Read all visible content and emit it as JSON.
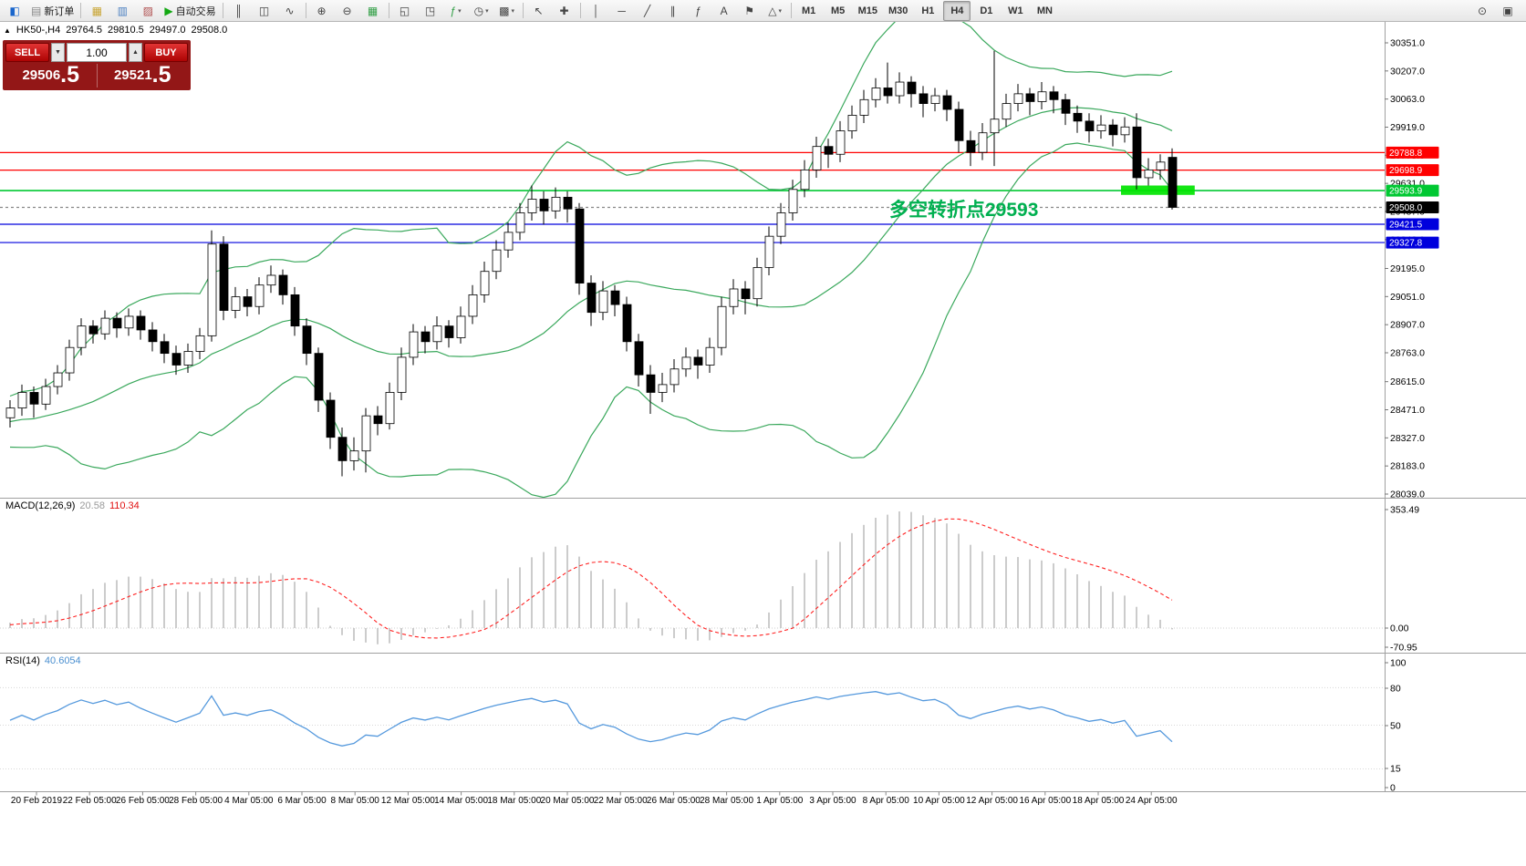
{
  "colors": {
    "bull": "#ffffff",
    "bear": "#000000",
    "wick": "#000000",
    "band": "#3aa85c",
    "resistance": "#ff0000",
    "support": "#0000dd",
    "pivot": "#00c832",
    "current_line": "#888888",
    "current_badge": "#000000",
    "highlight": "#00e400",
    "annotation": "#00b050",
    "macd_hist": "#bfbfbf",
    "macd_signal": "#ff2020",
    "rsi": "#5599dd",
    "separator": "#a0a0a0",
    "axis_text": "#000000"
  },
  "toolbar": {
    "caret_glyph": "▾",
    "items": [
      {
        "name": "app-icon",
        "glyph": "◧",
        "glyphColor": "#1a66cc",
        "static": true
      },
      {
        "name": "new-order-button",
        "glyph": "▤",
        "glyphColor": "#888888",
        "label": "新订单"
      },
      {
        "sep": true
      },
      {
        "name": "market-watch-button",
        "glyph": "▦",
        "glyphColor": "#c8a432"
      },
      {
        "name": "data-window-button",
        "glyph": "▥",
        "glyphColor": "#4a7fc0"
      },
      {
        "name": "terminal-button",
        "glyph": "▨",
        "glyphColor": "#b05050"
      },
      {
        "name": "autotrading-button",
        "glyph": "▶",
        "glyphColor": "#12a812",
        "label": "自动交易"
      },
      {
        "sep": true
      },
      {
        "name": "bar-chart-button",
        "glyph": "║"
      },
      {
        "name": "candlestick-chart-button",
        "glyph": "◫"
      },
      {
        "name": "line-chart-button",
        "glyph": "∿"
      },
      {
        "sep": true
      },
      {
        "name": "zoom-in-button",
        "glyph": "⊕"
      },
      {
        "name": "zoom-out-button",
        "glyph": "⊖"
      },
      {
        "name": "grid-button",
        "glyph": "▦",
        "glyphColor": "#2f9e44"
      },
      {
        "sep": true
      },
      {
        "name": "tile-windows-button",
        "glyph": "◱"
      },
      {
        "name": "cascade-windows-button",
        "glyph": "◳"
      },
      {
        "name": "indicators-dropdown",
        "glyph": "ƒ",
        "glyphColor": "#2f9e44",
        "caret": true
      },
      {
        "name": "periods-dropdown",
        "glyph": "◷",
        "caret": true
      },
      {
        "name": "templates-dropdown",
        "glyph": "▩",
        "caret": true
      },
      {
        "sep": true
      },
      {
        "name": "cursor-button",
        "glyph": "↖"
      },
      {
        "name": "crosshair-button",
        "glyph": "✚"
      },
      {
        "sep": true
      },
      {
        "name": "vertical-line-button",
        "glyph": "│"
      },
      {
        "name": "horizontal-line-button",
        "glyph": "─"
      },
      {
        "name": "trendline-button",
        "glyph": "╱"
      },
      {
        "name": "channel-button",
        "glyph": "∥"
      },
      {
        "name": "fibonacci-button",
        "glyph": "ƒ"
      },
      {
        "name": "text-button",
        "glyph": "A"
      },
      {
        "name": "label-button",
        "glyph": "⚑"
      },
      {
        "name": "shapes-dropdown",
        "glyph": "△",
        "caret": true
      },
      {
        "sep": true
      },
      {
        "name": "timeframe-m1-button",
        "text": "M1"
      },
      {
        "name": "timeframe-m5-button",
        "text": "M5"
      },
      {
        "name": "timeframe-m15-button",
        "text": "M15"
      },
      {
        "name": "timeframe-m30-button",
        "text": "M30"
      },
      {
        "name": "timeframe-h1-button",
        "text": "H1"
      },
      {
        "name": "timeframe-h4-button",
        "text": "H4",
        "active": true
      },
      {
        "name": "timeframe-d1-button",
        "text": "D1"
      },
      {
        "name": "timeframe-w1-button",
        "text": "W1"
      },
      {
        "name": "timeframe-mn-button",
        "text": "MN"
      }
    ],
    "right_items": [
      {
        "name": "symbol-search-button",
        "glyph": "⊙"
      },
      {
        "name": "chart-window-button",
        "glyph": "▣"
      }
    ]
  },
  "symbol_info": {
    "collapse_glyph": "▲",
    "symbol_period": "HK50-,H4",
    "open": "29764.5",
    "high": "29810.5",
    "low": "29497.0",
    "close": "29508.0"
  },
  "trade_panel": {
    "sell_label": "SELL",
    "buy_label": "BUY",
    "volume": "1.00",
    "spinner_down_glyph": "▼",
    "spinner_up_glyph": "▲",
    "sell_price_main": "29506",
    "sell_price_frac": ".5",
    "buy_price_main": "29521",
    "buy_price_frac": ".5"
  },
  "annotation": {
    "text": "多空转折点29593"
  },
  "indicators": {
    "macd": {
      "name": "MACD(12,26,9)",
      "main_value": "20.58",
      "signal_value": "110.34"
    },
    "rsi": {
      "name": "RSI(14)",
      "value": "40.6054"
    }
  },
  "chart_data": {
    "type": "candlestick",
    "symbol": "HK50-",
    "timeframe": "H4",
    "last_ohlc": {
      "open": "29764.5",
      "high": "29810.5",
      "low": "29497.0",
      "close": "29508.0"
    },
    "y_axis_labels": [
      "30351.0",
      "30207.0",
      "30063.0",
      "29919.0",
      "29775.0",
      "29631.0",
      "29487.0",
      "29343.0",
      "29195.0",
      "29051.0",
      "28907.0",
      "28763.0",
      "28615.0",
      "28471.0",
      "28327.0",
      "28183.0",
      "28039.0"
    ],
    "x_axis_labels": [
      "20 Feb 2019",
      "22 Feb 05:00",
      "26 Feb 05:00",
      "28 Feb 05:00",
      "4 Mar 05:00",
      "6 Mar 05:00",
      "8 Mar 05:00",
      "12 Mar 05:00",
      "14 Mar 05:00",
      "18 Mar 05:00",
      "20 Mar 05:00",
      "22 Mar 05:00",
      "26 Mar 05:00",
      "28 Mar 05:00",
      "1 Apr 05:00",
      "3 Apr 05:00",
      "8 Apr 05:00",
      "10 Apr 05:00",
      "12 Apr 05:00",
      "16 Apr 05:00",
      "18 Apr 05:00",
      "24 Apr 05:00"
    ],
    "macd_axis_labels": [
      "353.49",
      "0.00",
      "-70.95"
    ],
    "rsi_axis_labels": [
      "100",
      "80",
      "50",
      "15",
      "0"
    ],
    "horizontal_lines": [
      {
        "price": 29788.8,
        "label": "29788.8",
        "role": "resistance"
      },
      {
        "price": 29698.9,
        "label": "29698.9",
        "role": "resistance"
      },
      {
        "price": 29593.9,
        "label": "29593.9",
        "role": "pivot"
      },
      {
        "price": 29508.0,
        "label": "29508.0",
        "role": "current-price",
        "dashed": true
      },
      {
        "price": 29421.5,
        "label": "29421.5",
        "role": "support"
      },
      {
        "price": 29327.8,
        "label": "29327.8",
        "role": "support"
      }
    ],
    "highlight": {
      "from_bar": 94,
      "to_bar": 99.6,
      "price_top": 29620,
      "price_bottom": 29572
    },
    "bollinger": {
      "period": 20,
      "deviation": 2
    },
    "warmup_closes": [
      28400,
      28350,
      28420,
      28300,
      28380,
      28450,
      28500,
      28420,
      28350,
      28280,
      28340,
      28400,
      28460,
      28520,
      28480,
      28400,
      28350,
      28420,
      28480,
      28430
    ],
    "candles": [
      [
        28430,
        28520,
        28380,
        28480
      ],
      [
        28480,
        28600,
        28440,
        28560
      ],
      [
        28560,
        28590,
        28430,
        28500
      ],
      [
        28500,
        28630,
        28470,
        28590
      ],
      [
        28590,
        28700,
        28550,
        28660
      ],
      [
        28660,
        28830,
        28620,
        28790
      ],
      [
        28790,
        28940,
        28750,
        28900
      ],
      [
        28900,
        28930,
        28810,
        28860
      ],
      [
        28860,
        28980,
        28830,
        28940
      ],
      [
        28940,
        28970,
        28840,
        28890
      ],
      [
        28890,
        28990,
        28850,
        28950
      ],
      [
        28950,
        28980,
        28830,
        28880
      ],
      [
        28880,
        28920,
        28770,
        28820
      ],
      [
        28820,
        28860,
        28710,
        28760
      ],
      [
        28760,
        28800,
        28650,
        28700
      ],
      [
        28700,
        28810,
        28660,
        28770
      ],
      [
        28770,
        28890,
        28730,
        28850
      ],
      [
        28850,
        29390,
        28820,
        29320
      ],
      [
        29320,
        29360,
        28930,
        28980
      ],
      [
        28980,
        29100,
        28940,
        29050
      ],
      [
        29050,
        29090,
        28950,
        29000
      ],
      [
        29000,
        29150,
        28960,
        29110
      ],
      [
        29110,
        29210,
        29070,
        29160
      ],
      [
        29160,
        29190,
        29010,
        29060
      ],
      [
        29060,
        29100,
        28850,
        28900
      ],
      [
        28900,
        28940,
        28700,
        28760
      ],
      [
        28760,
        28790,
        28460,
        28520
      ],
      [
        28520,
        28560,
        28270,
        28330
      ],
      [
        28330,
        28380,
        28130,
        28210
      ],
      [
        28210,
        28330,
        28160,
        28260
      ],
      [
        28260,
        28480,
        28150,
        28440
      ],
      [
        28440,
        28490,
        28340,
        28400
      ],
      [
        28400,
        28610,
        28370,
        28560
      ],
      [
        28560,
        28790,
        28520,
        28740
      ],
      [
        28740,
        28910,
        28700,
        28870
      ],
      [
        28870,
        28900,
        28760,
        28820
      ],
      [
        28820,
        28950,
        28780,
        28900
      ],
      [
        28900,
        28930,
        28790,
        28840
      ],
      [
        28840,
        29000,
        28810,
        28950
      ],
      [
        28950,
        29110,
        28910,
        29060
      ],
      [
        29060,
        29230,
        29020,
        29180
      ],
      [
        29180,
        29340,
        29140,
        29290
      ],
      [
        29290,
        29430,
        29250,
        29380
      ],
      [
        29380,
        29530,
        29340,
        29480
      ],
      [
        29480,
        29620,
        29440,
        29550
      ],
      [
        29550,
        29590,
        29420,
        29490
      ],
      [
        29490,
        29610,
        29450,
        29560
      ],
      [
        29560,
        29590,
        29430,
        29500
      ],
      [
        29500,
        29530,
        29060,
        29120
      ],
      [
        29120,
        29160,
        28900,
        28970
      ],
      [
        28970,
        29130,
        28930,
        29080
      ],
      [
        29080,
        29110,
        28950,
        29010
      ],
      [
        29010,
        29050,
        28770,
        28820
      ],
      [
        28820,
        28860,
        28590,
        28650
      ],
      [
        28650,
        28700,
        28450,
        28560
      ],
      [
        28560,
        28660,
        28510,
        28600
      ],
      [
        28600,
        28730,
        28560,
        28680
      ],
      [
        28680,
        28790,
        28640,
        28740
      ],
      [
        28740,
        28780,
        28630,
        28700
      ],
      [
        28700,
        28840,
        28660,
        28790
      ],
      [
        28790,
        29050,
        28750,
        29000
      ],
      [
        29000,
        29140,
        28960,
        29090
      ],
      [
        29090,
        29130,
        28960,
        29040
      ],
      [
        29040,
        29250,
        29000,
        29200
      ],
      [
        29200,
        29410,
        29160,
        29360
      ],
      [
        29360,
        29530,
        29320,
        29480
      ],
      [
        29480,
        29650,
        29440,
        29600
      ],
      [
        29600,
        29750,
        29560,
        29700
      ],
      [
        29700,
        29870,
        29660,
        29820
      ],
      [
        29820,
        29860,
        29710,
        29780
      ],
      [
        29780,
        29950,
        29740,
        29900
      ],
      [
        29900,
        30030,
        29860,
        29980
      ],
      [
        29980,
        30110,
        29940,
        30060
      ],
      [
        30060,
        30170,
        30020,
        30120
      ],
      [
        30120,
        30250,
        30040,
        30080
      ],
      [
        30080,
        30200,
        30040,
        30150
      ],
      [
        30150,
        30180,
        30020,
        30090
      ],
      [
        30090,
        30130,
        29970,
        30040
      ],
      [
        30040,
        30120,
        30000,
        30080
      ],
      [
        30080,
        30110,
        29950,
        30010
      ],
      [
        30010,
        30050,
        29790,
        29850
      ],
      [
        29850,
        29900,
        29720,
        29790
      ],
      [
        29790,
        29940,
        29750,
        29890
      ],
      [
        29890,
        30310,
        29720,
        29960
      ],
      [
        29960,
        30090,
        29920,
        30040
      ],
      [
        30040,
        30140,
        30000,
        30090
      ],
      [
        30090,
        30120,
        29980,
        30050
      ],
      [
        30050,
        30150,
        30010,
        30100
      ],
      [
        30100,
        30130,
        29990,
        30060
      ],
      [
        30060,
        30090,
        29930,
        29990
      ],
      [
        29990,
        30030,
        29890,
        29950
      ],
      [
        29950,
        29990,
        29840,
        29900
      ],
      [
        29900,
        29980,
        29860,
        29930
      ],
      [
        29930,
        29960,
        29820,
        29880
      ],
      [
        29880,
        29970,
        29840,
        29920
      ],
      [
        29920,
        29990,
        29600,
        29660
      ],
      [
        29660,
        29760,
        29620,
        29700
      ],
      [
        29700,
        29780,
        29650,
        29740
      ],
      [
        29764.5,
        29810.5,
        29497.0,
        29508.0
      ]
    ]
  }
}
